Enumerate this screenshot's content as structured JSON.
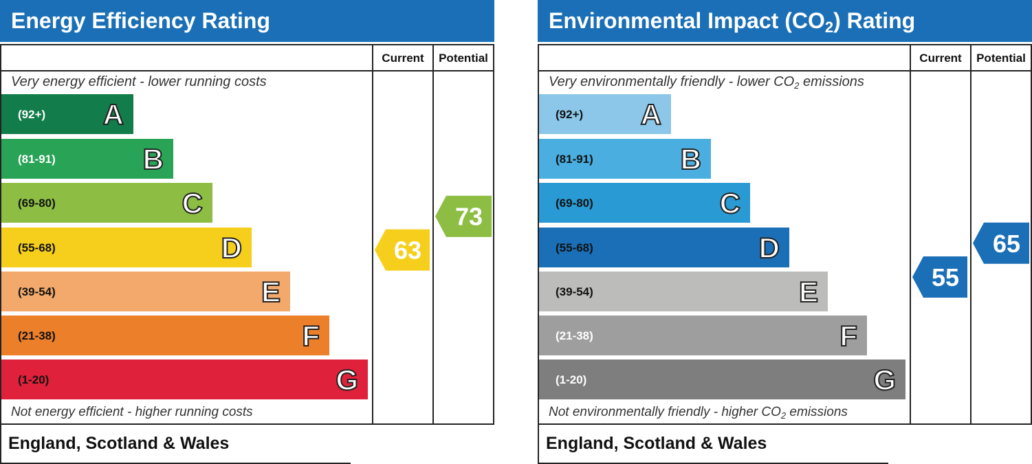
{
  "chart_data": [
    {
      "type": "bar",
      "title": "Energy Efficiency Rating",
      "columns": [
        "Current",
        "Potential"
      ],
      "top_caption": "Very energy efficient - lower running costs",
      "bottom_caption": "Not energy efficient - higher running costs",
      "footer": "England, Scotland & Wales",
      "bands": [
        {
          "letter": "A",
          "range": "(92+)",
          "color": "#127d4a",
          "text_color": "#ffffff"
        },
        {
          "letter": "B",
          "range": "(81-91)",
          "color": "#29a356",
          "text_color": "#ffffff"
        },
        {
          "letter": "C",
          "range": "(69-80)",
          "color": "#8dbe43",
          "text_color": "#111111"
        },
        {
          "letter": "D",
          "range": "(55-68)",
          "color": "#f5cf1c",
          "text_color": "#111111"
        },
        {
          "letter": "E",
          "range": "(39-54)",
          "color": "#f2a96b",
          "text_color": "#111111"
        },
        {
          "letter": "F",
          "range": "(21-38)",
          "color": "#ec7f2a",
          "text_color": "#111111"
        },
        {
          "letter": "G",
          "range": "(1-20)",
          "color": "#e0213b",
          "text_color": "#111111"
        }
      ],
      "current": {
        "value": 63,
        "color": "#f5cf1c"
      },
      "potential": {
        "value": 73,
        "color": "#8dbe43"
      }
    },
    {
      "type": "bar",
      "title": "Environmental Impact (CO2) Rating",
      "title_parts": [
        "Environmental Impact (CO",
        "2",
        ") Rating"
      ],
      "columns": [
        "Current",
        "Potential"
      ],
      "top_caption": "Very environmentally friendly - lower CO2 emissions",
      "top_caption_parts": [
        "Very environmentally friendly - lower CO",
        "2",
        " emissions"
      ],
      "bottom_caption": "Not environmentally friendly - higher CO2 emissions",
      "bottom_caption_parts": [
        "Not environmentally friendly - higher CO",
        "2",
        " emissions"
      ],
      "footer": "England, Scotland & Wales",
      "bands": [
        {
          "letter": "A",
          "range": "(92+)",
          "color": "#8cc7e9",
          "text_color": "#111111"
        },
        {
          "letter": "B",
          "range": "(81-91)",
          "color": "#4aaee0",
          "text_color": "#111111"
        },
        {
          "letter": "C",
          "range": "(69-80)",
          "color": "#2a9ad4",
          "text_color": "#111111"
        },
        {
          "letter": "D",
          "range": "(55-68)",
          "color": "#1a6fb7",
          "text_color": "#111111"
        },
        {
          "letter": "E",
          "range": "(39-54)",
          "color": "#bcbcbb",
          "text_color": "#111111"
        },
        {
          "letter": "F",
          "range": "(21-38)",
          "color": "#9e9e9e",
          "text_color": "#ffffff"
        },
        {
          "letter": "G",
          "range": "(1-20)",
          "color": "#7e7e7e",
          "text_color": "#ffffff"
        }
      ],
      "current": {
        "value": 55,
        "color": "#1a6fb7"
      },
      "potential": {
        "value": 65,
        "color": "#1a6fb7"
      }
    }
  ]
}
